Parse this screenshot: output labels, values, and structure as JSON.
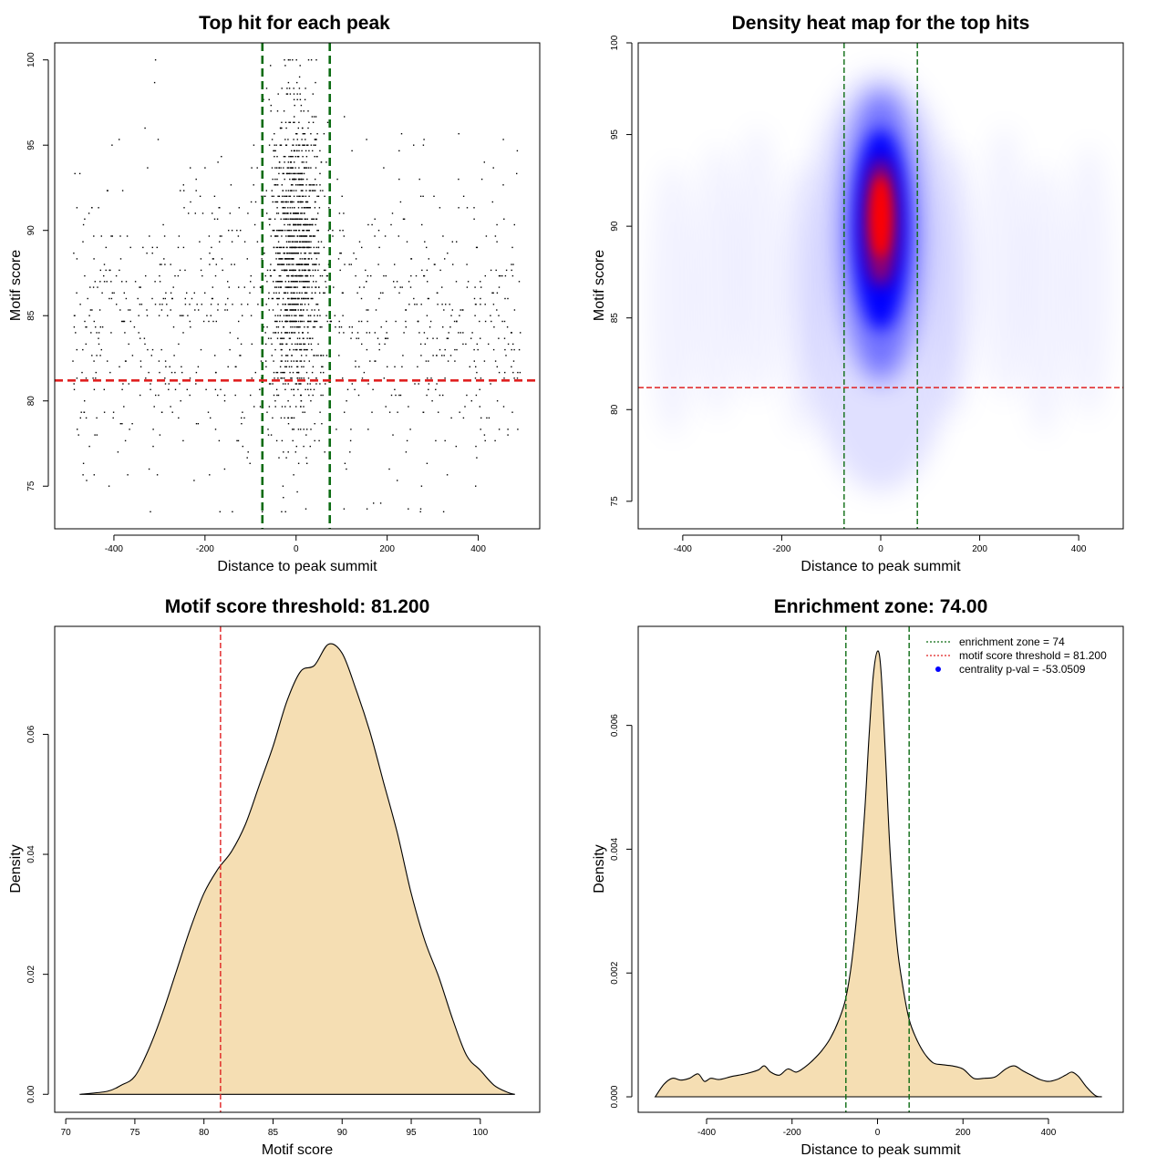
{
  "colors": {
    "green_line": "#0b6b12",
    "red_line": "#e02020",
    "fill_tan": "#f5deb3",
    "heat_low": "#ffffff",
    "heat_mid": "#0000ff",
    "heat_high": "#ff0000",
    "points": "#000000"
  },
  "chart_data": [
    {
      "type": "scatter",
      "title": "Top hit for each peak",
      "xlabel": "Distance to peak summit",
      "ylabel": "Motif score",
      "xlim": [
        -530,
        535
      ],
      "ylim": [
        72.5,
        101
      ],
      "xticks": [
        "-400",
        "-200",
        "0",
        "200",
        "400"
      ],
      "xtick_values": [
        -400,
        -200,
        0,
        200,
        400
      ],
      "yticks": [
        "75",
        "80",
        "85",
        "90",
        "95",
        "100"
      ],
      "ytick_values": [
        75,
        80,
        85,
        90,
        95,
        100
      ],
      "vlines": [
        -74,
        74
      ],
      "hline": 81.2,
      "point_summary": {
        "n_points": 2200,
        "central_fraction": 0.55,
        "central_x_sd": 28,
        "central_y_mean": 88.5,
        "central_y_sd": 4.5,
        "background_x_range": [
          -490,
          495
        ],
        "background_y_mean": 84.5,
        "background_y_sd": 4.5,
        "y_range": [
          73.5,
          100
        ]
      },
      "grid": false
    },
    {
      "type": "heatmap",
      "title": "Density heat map for the top hits",
      "xlabel": "Distance to peak summit",
      "ylabel": "Motif score",
      "xlim": [
        -490,
        490
      ],
      "ylim": [
        73.5,
        100
      ],
      "xticks": [
        "-400",
        "-200",
        "0",
        "200",
        "400"
      ],
      "xtick_values": [
        -400,
        -200,
        0,
        200,
        400
      ],
      "yticks": [
        "75",
        "80",
        "85",
        "90",
        "95",
        "100"
      ],
      "ytick_values": [
        75,
        80,
        85,
        90,
        95,
        100
      ],
      "vlines": [
        -74,
        74
      ],
      "hline": 81.2,
      "peak": {
        "x": 0,
        "y": 90.5
      },
      "grid": false
    },
    {
      "type": "area",
      "title": "Motif score threshold: 81.200",
      "xlabel": "Motif score",
      "ylabel": "Density",
      "xlim": [
        69.2,
        104.3
      ],
      "ylim": [
        -0.003,
        0.078
      ],
      "xticks": [
        "70",
        "75",
        "80",
        "85",
        "90",
        "95",
        "100"
      ],
      "xtick_values": [
        70,
        75,
        80,
        85,
        90,
        95,
        100
      ],
      "yticks": [
        "0.00",
        "0.02",
        "0.04",
        "0.06"
      ],
      "ytick_values": [
        0,
        0.02,
        0.04,
        0.06
      ],
      "vline": 81.2,
      "x": [
        71,
        73,
        74,
        75,
        76,
        77,
        78,
        79,
        80,
        81,
        82,
        83,
        84,
        85,
        86,
        87,
        88,
        89,
        90,
        91,
        92,
        93,
        94,
        95,
        96,
        97,
        98,
        99,
        100,
        101,
        102,
        102.5
      ],
      "y": [
        0,
        0.0005,
        0.0015,
        0.003,
        0.0075,
        0.0135,
        0.0205,
        0.0275,
        0.0335,
        0.0375,
        0.0405,
        0.045,
        0.0515,
        0.058,
        0.0655,
        0.0705,
        0.0715,
        0.075,
        0.0735,
        0.0675,
        0.0605,
        0.052,
        0.0435,
        0.0335,
        0.0255,
        0.0195,
        0.0125,
        0.0065,
        0.004,
        0.0015,
        0.0003,
        0
      ],
      "grid": false
    },
    {
      "type": "area",
      "title": "Enrichment zone: 74.00",
      "xlabel": "Distance to peak summit",
      "ylabel": "Density",
      "xlim": [
        -560,
        575
      ],
      "ylim": [
        -0.00025,
        0.0076
      ],
      "xticks": [
        "-400",
        "-200",
        "0",
        "200",
        "400"
      ],
      "xtick_values": [
        -400,
        -200,
        0,
        200,
        400
      ],
      "yticks": [
        "0.000",
        "0.002",
        "0.004",
        "0.006"
      ],
      "ytick_values": [
        0,
        0.002,
        0.004,
        0.006
      ],
      "vlines": [
        -74,
        74
      ],
      "x": [
        -520,
        -500,
        -480,
        -460,
        -440,
        -420,
        -405,
        -390,
        -370,
        -340,
        -310,
        -280,
        -265,
        -250,
        -230,
        -210,
        -190,
        -170,
        -150,
        -130,
        -110,
        -90,
        -74,
        -60,
        -45,
        -30,
        -20,
        -10,
        0,
        8,
        18,
        30,
        45,
        60,
        74,
        90,
        110,
        130,
        150,
        175,
        200,
        225,
        250,
        275,
        300,
        320,
        340,
        360,
        380,
        400,
        420,
        440,
        455,
        470,
        490,
        510,
        525
      ],
      "y": [
        0,
        0.0002,
        0.0003,
        0.00027,
        0.0003,
        0.00037,
        0.00025,
        0.0003,
        0.00028,
        0.00033,
        0.00037,
        0.00043,
        0.0005,
        0.0004,
        0.00035,
        0.00045,
        0.0004,
        0.00048,
        0.0006,
        0.00075,
        0.00095,
        0.00125,
        0.0016,
        0.0022,
        0.0032,
        0.0046,
        0.0058,
        0.0068,
        0.0072,
        0.0069,
        0.0056,
        0.0039,
        0.0025,
        0.00175,
        0.00125,
        0.00095,
        0.0007,
        0.00055,
        0.00052,
        0.0005,
        0.00045,
        0.0003,
        0.0003,
        0.00032,
        0.00045,
        0.0005,
        0.00042,
        0.00035,
        0.00028,
        0.00025,
        0.00028,
        0.00035,
        0.0004,
        0.00033,
        0.00015,
        2e-05,
        0
      ],
      "grid": false,
      "legend_position": "top-right",
      "legend": [
        {
          "label": "enrichment zone = 74",
          "kind": "dotted-line",
          "color": "#0b6b12"
        },
        {
          "label": "motif score threshold = 81.200",
          "kind": "dotted-line",
          "color": "#e02020"
        },
        {
          "label": "centrality p-val = -53.0509",
          "kind": "point",
          "color": "#0000ff"
        }
      ]
    }
  ]
}
